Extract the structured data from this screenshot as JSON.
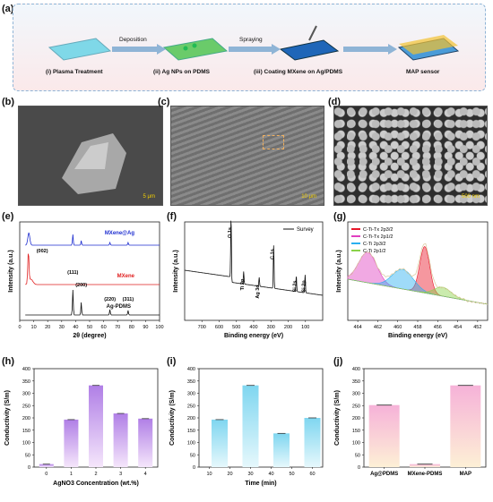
{
  "panels": {
    "a": "(a)",
    "b": "(b)",
    "c": "(c)",
    "d": "(d)",
    "e": "(e)",
    "f": "(f)",
    "g": "(g)",
    "h": "(h)",
    "i": "(i)",
    "j": "(j)"
  },
  "flow": {
    "steps": [
      "(i) Plasma Treatment",
      "(ii) Ag NPs on PDMS",
      "(iii) Coating MXene on Ag/PDMS",
      "MAP sensor"
    ],
    "ops": [
      "Deposition",
      "Spraying"
    ]
  },
  "scale_bars": {
    "b": "5 μm",
    "c": "10 μm",
    "d": "500 nm"
  },
  "chart_data": [
    {
      "panel": "e",
      "type": "line",
      "xlabel": "2θ (degree)",
      "ylabel": "Intensity (a.u.)",
      "xlim": [
        0,
        100
      ],
      "xticks": [
        0,
        10,
        20,
        30,
        40,
        50,
        60,
        70,
        80,
        90,
        100
      ],
      "series": [
        {
          "name": "MXene@Ag",
          "color": "#1f2fd0"
        },
        {
          "name": "MXene",
          "color": "#e02020"
        },
        {
          "name": "Ag-PDMS",
          "color": "#111111"
        }
      ],
      "peak_labels": [
        "(002)",
        "(111)",
        "(200)",
        "(220)",
        "(311)"
      ]
    },
    {
      "panel": "f",
      "type": "line",
      "xlabel": "Binding energy (eV)",
      "ylabel": "Intensity (a.u.)",
      "xlim": [
        800,
        0
      ],
      "xticks": [
        700,
        600,
        500,
        400,
        300,
        200,
        100
      ],
      "series": [
        {
          "name": "Survey",
          "color": "#111111"
        }
      ],
      "peak_labels": [
        "O 1s",
        "Ti 2p",
        "Ag 3d",
        "C 1s",
        "Si 2s",
        "Si 2p"
      ]
    },
    {
      "panel": "g",
      "type": "area",
      "xlabel": "Binding energy (eV)",
      "ylabel": "Intensity (a.u.)",
      "xlim": [
        465,
        451
      ],
      "xticks": [
        464,
        462,
        460,
        458,
        456,
        454,
        452
      ],
      "series": [
        {
          "name": "C-Ti-Tx 2p3/2",
          "color": "#e8182a"
        },
        {
          "name": "C-Ti-Tx 2p1/2",
          "color": "#e040c0"
        },
        {
          "name": "C-Ti 2p3/2",
          "color": "#2ab0f0"
        },
        {
          "name": "C-Ti 2p1/2",
          "color": "#8ad24a"
        }
      ]
    },
    {
      "panel": "h",
      "type": "bar",
      "xlabel": "AgNO3 Concentration (wt.%)",
      "ylabel": "Conductivity (S/m)",
      "categories": [
        "0",
        "1",
        "2",
        "3",
        "4"
      ],
      "values": [
        12,
        193,
        332,
        218,
        197
      ],
      "ylim": [
        0,
        400
      ],
      "yticks": [
        0,
        50,
        100,
        150,
        200,
        250,
        300,
        350,
        400
      ]
    },
    {
      "panel": "i",
      "type": "bar",
      "xlabel": "Time (min)",
      "ylabel": "Conductivity (S/m)",
      "categories": [
        "10",
        "20",
        "30",
        "40",
        "50",
        "60"
      ],
      "values": [
        193,
        null,
        332,
        null,
        137,
        200
      ],
      "bar_positions": [
        15,
        30,
        45,
        60
      ],
      "bar_values": [
        193,
        332,
        137,
        200
      ],
      "ylim": [
        0,
        400
      ],
      "yticks": [
        0,
        50,
        100,
        150,
        200,
        250,
        300,
        350,
        400
      ]
    },
    {
      "panel": "j",
      "type": "bar",
      "xlabel": "",
      "ylabel": "Conductivity (S/m)",
      "categories": [
        "Ag@PDMS",
        "MXene-PDMS",
        "MAP"
      ],
      "values": [
        252,
        12,
        332
      ],
      "ylim": [
        0,
        400
      ],
      "yticks": [
        0,
        50,
        100,
        150,
        200,
        250,
        300,
        350,
        400
      ]
    }
  ]
}
